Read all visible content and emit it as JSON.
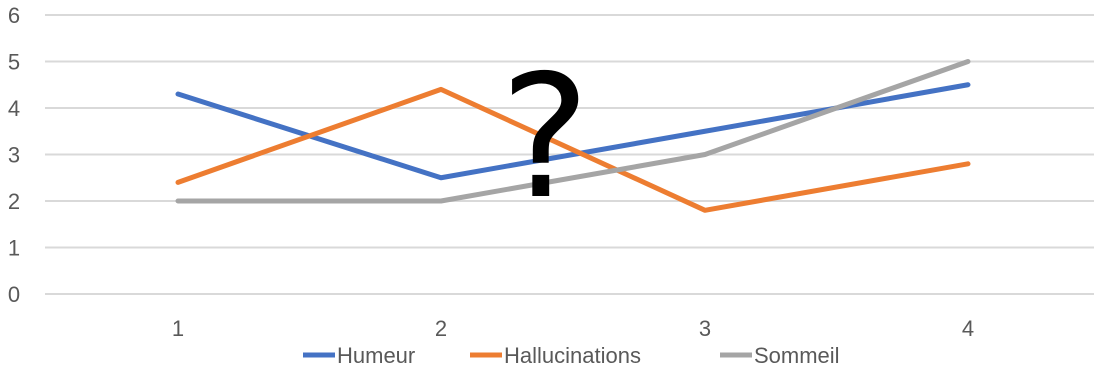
{
  "chart_data": {
    "type": "line",
    "categories": [
      "1",
      "2",
      "3",
      "4"
    ],
    "series": [
      {
        "name": "Humeur",
        "values": [
          4.3,
          2.5,
          3.5,
          4.5
        ],
        "color": "#4472C4"
      },
      {
        "name": "Hallucinations",
        "values": [
          2.4,
          4.4,
          1.8,
          2.8
        ],
        "color": "#ED7D31"
      },
      {
        "name": "Sommeil",
        "values": [
          2.0,
          2.0,
          3.0,
          5.0
        ],
        "color": "#A5A5A5"
      }
    ],
    "ylim": [
      0,
      6
    ],
    "yticks": [
      "0",
      "1",
      "2",
      "3",
      "4",
      "5",
      "6"
    ],
    "grid": true,
    "legend_position": "bottom",
    "annotation": "?",
    "grid_color": "#d9d9d9"
  }
}
